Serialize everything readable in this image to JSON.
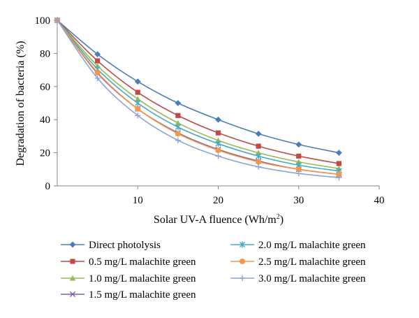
{
  "chart_data": {
    "type": "line",
    "xlabel": "Solar UV-A fluence (Wh/m",
    "xlabel_sup": "2",
    "xlabel_end": ")",
    "ylabel": "Degradation of bacteria (%)",
    "xlim": [
      0,
      40
    ],
    "ylim": [
      0,
      100
    ],
    "xticks": [
      10,
      20,
      30,
      40
    ],
    "yticks": [
      0,
      20,
      40,
      60,
      80,
      100
    ],
    "x": [
      0,
      5,
      10,
      15,
      20,
      25,
      30,
      35
    ],
    "grid": false,
    "legend_position": "bottom",
    "series": [
      {
        "name": "Direct photolysis",
        "color": "#4a7ebb",
        "marker": "diamond",
        "values": [
          100,
          79.5,
          63,
          50,
          40,
          31.5,
          25,
          20
        ]
      },
      {
        "name": "0.5 mg/L malachite green",
        "color": "#be4b48",
        "marker": "square",
        "values": [
          100,
          75.5,
          56.5,
          42.5,
          32,
          24,
          18,
          13.5
        ]
      },
      {
        "name": "1.0 mg/L malachite green",
        "color": "#98b954",
        "marker": "triangle",
        "values": [
          100,
          72.5,
          52.5,
          38,
          27.5,
          20,
          14.5,
          10.5
        ]
      },
      {
        "name": "1.5 mg/L malachite green",
        "color": "#7d60a0",
        "marker": "x",
        "values": [
          100,
          68,
          46.5,
          32,
          22,
          15,
          10,
          7
        ]
      },
      {
        "name": "2.0 mg/L malachite green",
        "color": "#46aac5",
        "marker": "star",
        "values": [
          100,
          70.5,
          50,
          35.5,
          25.5,
          18,
          12.5,
          9
        ]
      },
      {
        "name": "2.5 mg/L malachite green",
        "color": "#f79646",
        "marker": "circle",
        "values": [
          100,
          68.5,
          46.5,
          31.5,
          21.5,
          14.5,
          10,
          7
        ]
      },
      {
        "name": "3.0 mg/L malachite green",
        "color": "#8ea3d6",
        "marker": "plus",
        "values": [
          100,
          65,
          42.5,
          27.5,
          18,
          11.5,
          7.5,
          5
        ]
      }
    ]
  }
}
